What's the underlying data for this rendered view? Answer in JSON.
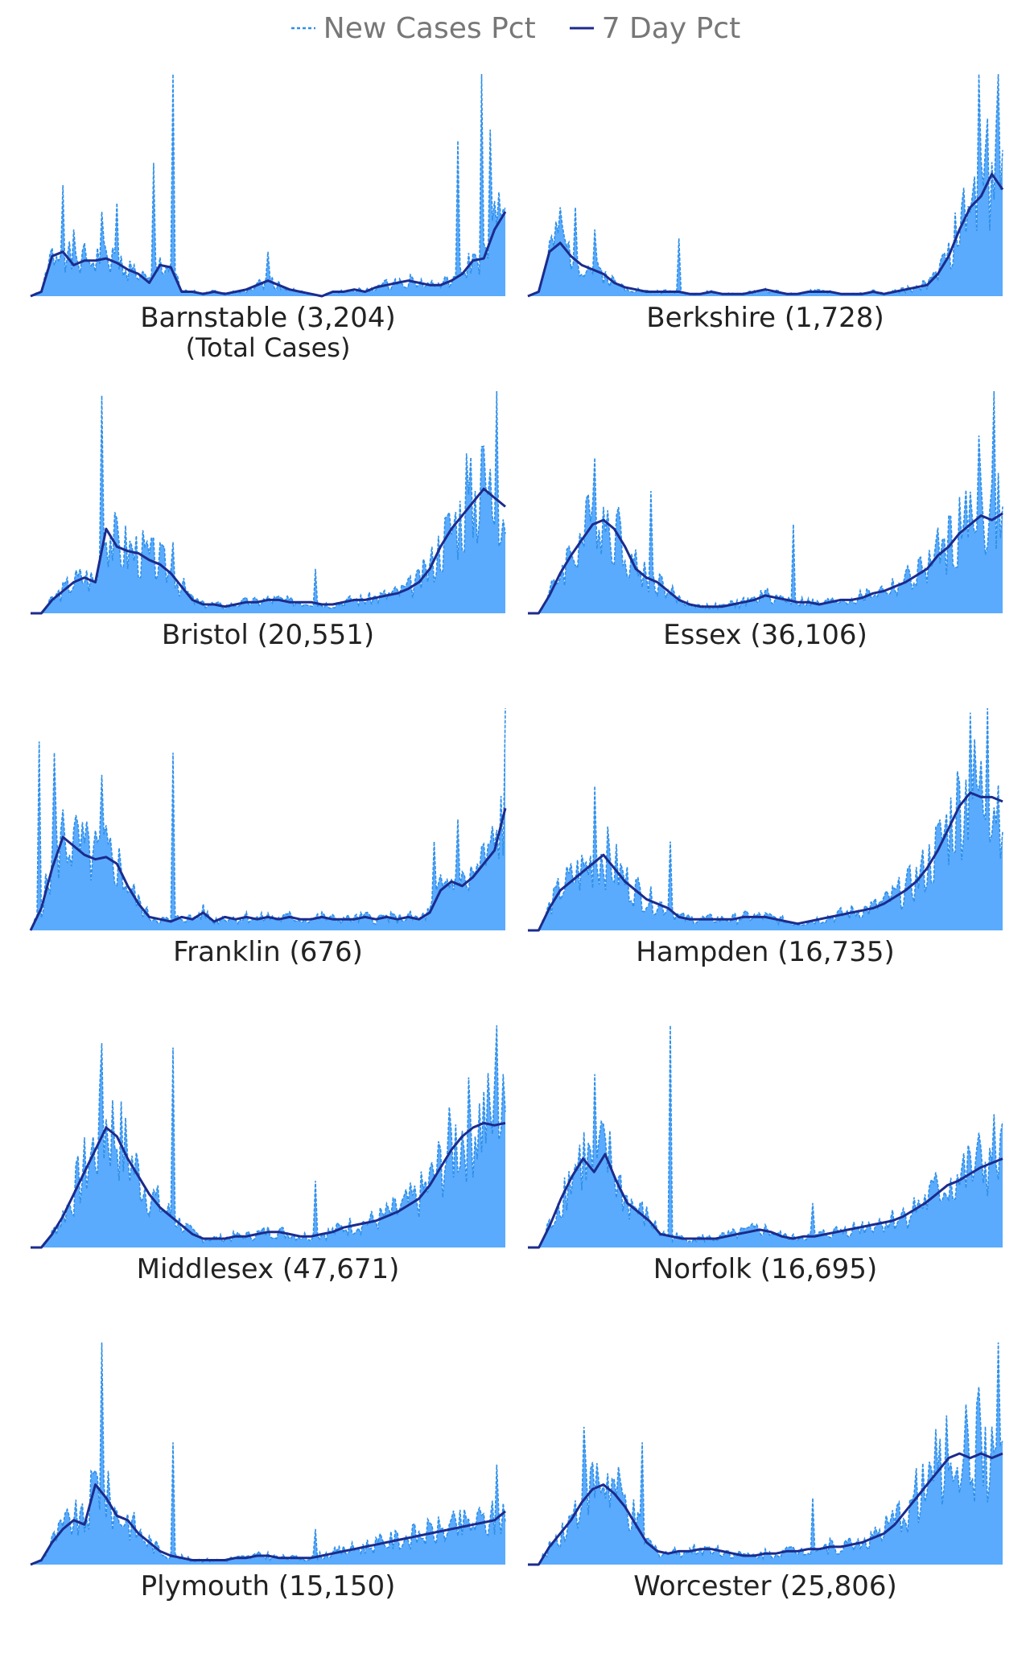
{
  "legend": {
    "new_cases_label": "New Cases Pct",
    "seven_day_label": "7 Day Pct"
  },
  "colors": {
    "new_cases_fill": "#5aabfd",
    "new_cases_line": "#2e8fe8",
    "seven_day_line": "#1c2b8c",
    "label_text": "#222222",
    "legend_text": "#777777"
  },
  "panels": [
    {
      "label": "Barnstable (3,204)",
      "sublabel": "(Total Cases)"
    },
    {
      "label": "Berkshire (1,728)",
      "sublabel": ""
    },
    {
      "label": "Bristol (20,551)",
      "sublabel": ""
    },
    {
      "label": "Essex (36,106)",
      "sublabel": ""
    },
    {
      "label": "Franklin (676)",
      "sublabel": ""
    },
    {
      "label": "Hampden (16,735)",
      "sublabel": ""
    },
    {
      "label": "Middlesex (47,671)",
      "sublabel": ""
    },
    {
      "label": "Norfolk (16,695)",
      "sublabel": ""
    },
    {
      "label": "Plymouth (15,150)",
      "sublabel": ""
    },
    {
      "label": "Worcester (25,806)",
      "sublabel": ""
    }
  ],
  "chart_data": [
    {
      "type": "area",
      "county": "Barnstable",
      "total_cases": 3204,
      "series": [
        {
          "name": "New Cases Pct",
          "style": "dashed-area"
        },
        {
          "name": "7 Day Pct",
          "style": "line"
        }
      ],
      "seven_day": [
        0,
        0.02,
        0.18,
        0.2,
        0.14,
        0.16,
        0.16,
        0.17,
        0.15,
        0.12,
        0.1,
        0.06,
        0.14,
        0.13,
        0.02,
        0.02,
        0.01,
        0.02,
        0.01,
        0.02,
        0.03,
        0.05,
        0.07,
        0.05,
        0.03,
        0.02,
        0.01,
        0,
        0.02,
        0.02,
        0.03,
        0.02,
        0.04,
        0.05,
        0.06,
        0.07,
        0.06,
        0.05,
        0.05,
        0.07,
        0.1,
        0.16,
        0.17,
        0.3,
        0.38
      ],
      "spikes": [
        [
          0.07,
          0.5
        ],
        [
          0.09,
          0.3
        ],
        [
          0.15,
          0.38
        ],
        [
          0.18,
          0.42
        ],
        [
          0.26,
          0.6
        ],
        [
          0.3,
          1.0
        ],
        [
          0.5,
          0.2
        ],
        [
          0.9,
          0.7
        ],
        [
          0.95,
          1.0
        ],
        [
          0.97,
          0.75
        ]
      ],
      "ymax": 1.0
    },
    {
      "type": "area",
      "county": "Berkshire",
      "total_cases": 1728,
      "series": [
        {
          "name": "New Cases Pct",
          "style": "dashed-area"
        },
        {
          "name": "7 Day Pct",
          "style": "line"
        }
      ],
      "seven_day": [
        0,
        0.02,
        0.2,
        0.24,
        0.18,
        0.14,
        0.12,
        0.1,
        0.06,
        0.04,
        0.03,
        0.02,
        0.02,
        0.02,
        0.02,
        0.01,
        0.01,
        0.02,
        0.01,
        0.01,
        0.01,
        0.02,
        0.03,
        0.02,
        0.01,
        0.01,
        0.02,
        0.02,
        0.02,
        0.01,
        0.01,
        0.01,
        0.02,
        0.01,
        0.02,
        0.03,
        0.04,
        0.05,
        0.1,
        0.18,
        0.3,
        0.4,
        0.45,
        0.55,
        0.48
      ],
      "spikes": [
        [
          0.07,
          0.4
        ],
        [
          0.1,
          0.4
        ],
        [
          0.14,
          0.3
        ],
        [
          0.32,
          0.26
        ],
        [
          0.95,
          1.0
        ],
        [
          0.97,
          0.8
        ],
        [
          0.99,
          1.0
        ]
      ],
      "ymax": 1.0
    },
    {
      "type": "area",
      "county": "Bristol",
      "total_cases": 20551,
      "series": [
        {
          "name": "New Cases Pct",
          "style": "dashed-area"
        },
        {
          "name": "7 Day Pct",
          "style": "line"
        }
      ],
      "seven_day": [
        0,
        0,
        0.06,
        0.1,
        0.14,
        0.16,
        0.14,
        0.38,
        0.3,
        0.28,
        0.27,
        0.24,
        0.22,
        0.18,
        0.12,
        0.06,
        0.04,
        0.04,
        0.03,
        0.04,
        0.05,
        0.05,
        0.06,
        0.06,
        0.05,
        0.05,
        0.05,
        0.04,
        0.04,
        0.05,
        0.06,
        0.06,
        0.07,
        0.08,
        0.09,
        0.11,
        0.14,
        0.2,
        0.3,
        0.38,
        0.44,
        0.5,
        0.56,
        0.52,
        0.48
      ],
      "spikes": [
        [
          0.15,
          0.98
        ],
        [
          0.3,
          0.32
        ],
        [
          0.6,
          0.2
        ],
        [
          0.92,
          0.72
        ],
        [
          0.95,
          0.75
        ],
        [
          0.98,
          1.0
        ]
      ],
      "ymax": 1.0
    },
    {
      "type": "area",
      "county": "Essex",
      "total_cases": 36106,
      "series": [
        {
          "name": "New Cases Pct",
          "style": "dashed-area"
        },
        {
          "name": "7 Day Pct",
          "style": "line"
        }
      ],
      "seven_day": [
        0,
        0,
        0.08,
        0.18,
        0.26,
        0.33,
        0.4,
        0.42,
        0.38,
        0.3,
        0.2,
        0.16,
        0.14,
        0.1,
        0.06,
        0.04,
        0.03,
        0.03,
        0.03,
        0.04,
        0.05,
        0.06,
        0.08,
        0.07,
        0.06,
        0.05,
        0.05,
        0.04,
        0.05,
        0.06,
        0.06,
        0.07,
        0.09,
        0.1,
        0.12,
        0.14,
        0.17,
        0.2,
        0.26,
        0.3,
        0.36,
        0.4,
        0.44,
        0.42,
        0.45
      ],
      "spikes": [
        [
          0.14,
          0.7
        ],
        [
          0.26,
          0.55
        ],
        [
          0.56,
          0.4
        ],
        [
          0.95,
          0.8
        ],
        [
          0.98,
          1.0
        ]
      ],
      "ymax": 1.0
    },
    {
      "type": "area",
      "county": "Franklin",
      "total_cases": 676,
      "series": [
        {
          "name": "New Cases Pct",
          "style": "dashed-area"
        },
        {
          "name": "7 Day Pct",
          "style": "line"
        }
      ],
      "seven_day": [
        0,
        0.1,
        0.28,
        0.42,
        0.38,
        0.34,
        0.32,
        0.33,
        0.3,
        0.2,
        0.12,
        0.06,
        0.05,
        0.04,
        0.06,
        0.05,
        0.08,
        0.04,
        0.06,
        0.05,
        0.06,
        0.05,
        0.06,
        0.05,
        0.06,
        0.05,
        0.05,
        0.06,
        0.05,
        0.05,
        0.05,
        0.06,
        0.05,
        0.06,
        0.05,
        0.06,
        0.05,
        0.08,
        0.18,
        0.22,
        0.2,
        0.24,
        0.3,
        0.36,
        0.55
      ],
      "spikes": [
        [
          0.02,
          0.85
        ],
        [
          0.05,
          0.8
        ],
        [
          0.15,
          0.7
        ],
        [
          0.3,
          0.8
        ],
        [
          0.85,
          0.4
        ],
        [
          0.9,
          0.5
        ],
        [
          1.0,
          1.0
        ]
      ],
      "ymax": 1.0
    },
    {
      "type": "area",
      "county": "Hampden",
      "total_cases": 16735,
      "series": [
        {
          "name": "New Cases Pct",
          "style": "dashed-area"
        },
        {
          "name": "7 Day Pct",
          "style": "line"
        }
      ],
      "seven_day": [
        0,
        0,
        0.1,
        0.18,
        0.22,
        0.26,
        0.3,
        0.34,
        0.28,
        0.22,
        0.18,
        0.14,
        0.12,
        0.1,
        0.06,
        0.05,
        0.05,
        0.05,
        0.05,
        0.05,
        0.06,
        0.06,
        0.06,
        0.05,
        0.04,
        0.03,
        0.04,
        0.05,
        0.06,
        0.07,
        0.08,
        0.09,
        0.1,
        0.12,
        0.15,
        0.18,
        0.22,
        0.28,
        0.36,
        0.46,
        0.56,
        0.62,
        0.6,
        0.6,
        0.58
      ],
      "spikes": [
        [
          0.14,
          0.65
        ],
        [
          0.3,
          0.4
        ],
        [
          0.93,
          0.98
        ],
        [
          0.97,
          1.0
        ]
      ],
      "ymax": 1.0
    },
    {
      "type": "area",
      "county": "Middlesex",
      "total_cases": 47671,
      "series": [
        {
          "name": "New Cases Pct",
          "style": "dashed-area"
        },
        {
          "name": "7 Day Pct",
          "style": "line"
        }
      ],
      "seven_day": [
        0,
        0,
        0.06,
        0.14,
        0.24,
        0.34,
        0.44,
        0.54,
        0.5,
        0.4,
        0.32,
        0.24,
        0.18,
        0.14,
        0.1,
        0.06,
        0.04,
        0.04,
        0.04,
        0.05,
        0.05,
        0.06,
        0.07,
        0.07,
        0.06,
        0.05,
        0.05,
        0.06,
        0.07,
        0.09,
        0.1,
        0.11,
        0.12,
        0.14,
        0.16,
        0.19,
        0.22,
        0.28,
        0.36,
        0.44,
        0.5,
        0.54,
        0.56,
        0.55,
        0.56
      ],
      "spikes": [
        [
          0.15,
          0.92
        ],
        [
          0.3,
          0.9
        ],
        [
          0.6,
          0.3
        ],
        [
          0.98,
          1.0
        ]
      ],
      "ymax": 1.0
    },
    {
      "type": "area",
      "county": "Norfolk",
      "total_cases": 16695,
      "series": [
        {
          "name": "New Cases Pct",
          "style": "dashed-area"
        },
        {
          "name": "7 Day Pct",
          "style": "line"
        }
      ],
      "seven_day": [
        0,
        0,
        0.1,
        0.22,
        0.32,
        0.4,
        0.34,
        0.42,
        0.3,
        0.2,
        0.16,
        0.12,
        0.06,
        0.05,
        0.04,
        0.04,
        0.04,
        0.04,
        0.05,
        0.06,
        0.07,
        0.08,
        0.07,
        0.05,
        0.04,
        0.05,
        0.05,
        0.06,
        0.07,
        0.08,
        0.09,
        0.1,
        0.11,
        0.12,
        0.14,
        0.17,
        0.2,
        0.24,
        0.28,
        0.3,
        0.33,
        0.36,
        0.38,
        0.4
      ],
      "spikes": [
        [
          0.14,
          0.78
        ],
        [
          0.3,
          1.0
        ],
        [
          0.6,
          0.2
        ],
        [
          0.98,
          0.6
        ]
      ],
      "ymax": 1.0
    },
    {
      "type": "area",
      "county": "Plymouth",
      "total_cases": 15150,
      "series": [
        {
          "name": "New Cases Pct",
          "style": "dashed-area"
        },
        {
          "name": "7 Day Pct",
          "style": "line"
        }
      ],
      "seven_day": [
        0,
        0.02,
        0.1,
        0.16,
        0.2,
        0.18,
        0.36,
        0.3,
        0.22,
        0.2,
        0.14,
        0.1,
        0.06,
        0.04,
        0.03,
        0.02,
        0.02,
        0.02,
        0.02,
        0.03,
        0.03,
        0.04,
        0.04,
        0.03,
        0.03,
        0.03,
        0.03,
        0.04,
        0.05,
        0.06,
        0.07,
        0.08,
        0.09,
        0.1,
        0.11,
        0.12,
        0.13,
        0.14,
        0.15,
        0.16,
        0.17,
        0.18,
        0.19,
        0.2,
        0.24
      ],
      "spikes": [
        [
          0.15,
          1.0
        ],
        [
          0.3,
          0.55
        ],
        [
          0.6,
          0.16
        ],
        [
          0.98,
          0.45
        ]
      ],
      "ymax": 1.0
    },
    {
      "type": "area",
      "county": "Worcester",
      "total_cases": 25806,
      "series": [
        {
          "name": "New Cases Pct",
          "style": "dashed-area"
        },
        {
          "name": "7 Day Pct",
          "style": "line"
        }
      ],
      "seven_day": [
        0,
        0,
        0.08,
        0.14,
        0.2,
        0.28,
        0.34,
        0.36,
        0.32,
        0.26,
        0.18,
        0.1,
        0.06,
        0.05,
        0.06,
        0.06,
        0.07,
        0.07,
        0.06,
        0.05,
        0.04,
        0.04,
        0.05,
        0.05,
        0.06,
        0.06,
        0.07,
        0.07,
        0.08,
        0.08,
        0.09,
        0.1,
        0.12,
        0.14,
        0.18,
        0.24,
        0.3,
        0.36,
        0.42,
        0.48,
        0.5,
        0.48,
        0.5,
        0.48,
        0.5
      ],
      "spikes": [
        [
          0.12,
          0.62
        ],
        [
          0.24,
          0.55
        ],
        [
          0.6,
          0.3
        ],
        [
          0.95,
          0.8
        ],
        [
          0.99,
          1.0
        ]
      ],
      "ymax": 1.0
    }
  ]
}
